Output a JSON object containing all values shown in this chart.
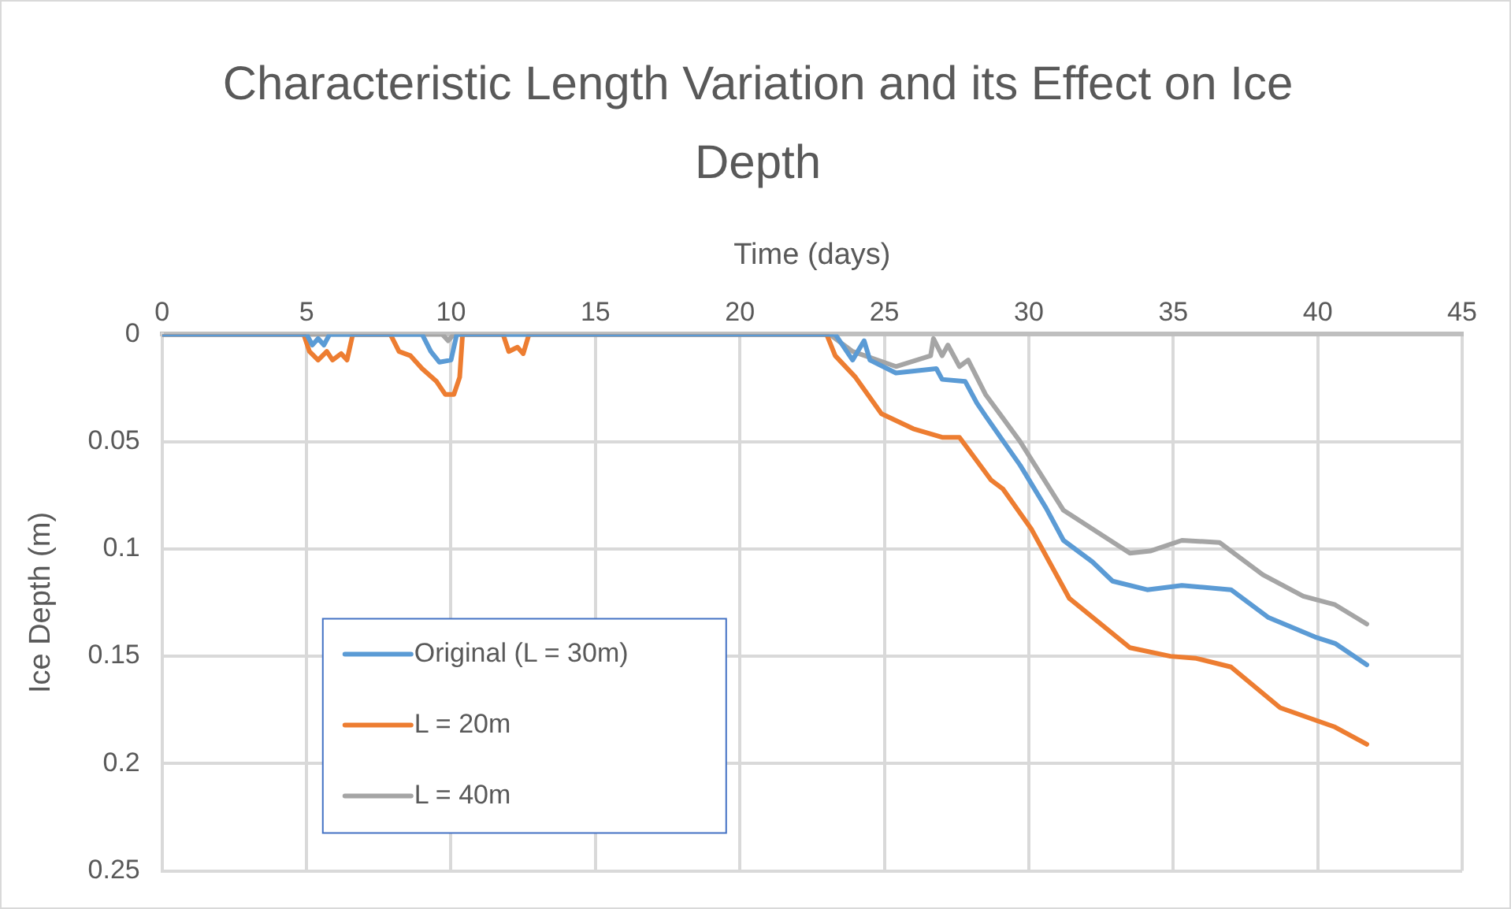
{
  "chart_data": {
    "type": "line",
    "title": "Characteristic Length Variation and its Effect on Ice Depth",
    "xlabel": "Time (days)",
    "ylabel": "Ice Depth (m)",
    "xlim": [
      0,
      45
    ],
    "xticks": [
      0,
      5,
      10,
      15,
      20,
      25,
      30,
      35,
      40,
      45
    ],
    "ylim": [
      0.25,
      0
    ],
    "yticks": [
      0,
      0.05,
      0.1,
      0.15,
      0.2,
      0.25
    ],
    "grid": true,
    "legend": "bottom left",
    "marker": "none",
    "line_style": "solid",
    "series": [
      {
        "name": "Original (L = 30m)",
        "color": "#5b9bd5",
        "x": [
          0,
          5.0,
          5.2,
          5.4,
          5.6,
          5.8,
          9.0,
          9.3,
          9.6,
          10.0,
          10.2,
          23.0,
          23.3,
          23.9,
          24.3,
          24.5,
          25.4,
          26.8,
          27.0,
          27.8,
          28.2,
          28.5,
          29.7,
          30.6,
          31.2,
          32.2,
          32.9,
          34.1,
          35.3,
          37.0,
          38.3,
          39.9,
          40.6,
          41.7
        ],
        "values": [
          0,
          0,
          0.005,
          0.002,
          0.005,
          0,
          0,
          0.008,
          0.013,
          0.012,
          0,
          0,
          0,
          0.012,
          0.003,
          0.012,
          0.018,
          0.016,
          0.021,
          0.022,
          0.032,
          0.038,
          0.061,
          0.081,
          0.096,
          0.106,
          0.115,
          0.119,
          0.117,
          0.119,
          0.132,
          0.141,
          0.144,
          0.154
        ]
      },
      {
        "name": "L = 20m",
        "color": "#ed7d31",
        "x": [
          0,
          4.9,
          5.1,
          5.4,
          5.7,
          5.9,
          6.2,
          6.4,
          6.6,
          7.9,
          8.2,
          8.6,
          9.0,
          9.5,
          9.8,
          10.1,
          10.3,
          10.4,
          11.8,
          12.0,
          12.3,
          12.5,
          12.7,
          23.0,
          23.3,
          24.0,
          24.9,
          26.0,
          27.0,
          27.6,
          28.7,
          29.1,
          30.1,
          31.4,
          33.5,
          34.9,
          35.8,
          37.0,
          38.7,
          40.6,
          41.7
        ],
        "values": [
          0,
          0,
          0.008,
          0.012,
          0.008,
          0.012,
          0.009,
          0.012,
          0,
          0,
          0.008,
          0.01,
          0.016,
          0.022,
          0.028,
          0.028,
          0.02,
          0,
          0,
          0.008,
          0.006,
          0.009,
          0,
          0,
          0.01,
          0.02,
          0.037,
          0.044,
          0.048,
          0.048,
          0.068,
          0.072,
          0.091,
          0.123,
          0.146,
          0.15,
          0.151,
          0.155,
          0.174,
          0.183,
          0.191
        ]
      },
      {
        "name": "L = 40m",
        "color": "#a5a5a5",
        "x": [
          0,
          9.7,
          9.9,
          10.1,
          23.1,
          23.9,
          25.4,
          26.6,
          26.7,
          27.0,
          27.2,
          27.6,
          27.9,
          28.5,
          29.7,
          31.2,
          33.5,
          34.2,
          35.3,
          36.6,
          38.1,
          39.5,
          40.6,
          41.7
        ],
        "values": [
          0,
          0,
          0.003,
          0,
          0,
          0.008,
          0.015,
          0.01,
          0.002,
          0.01,
          0.005,
          0.015,
          0.012,
          0.028,
          0.05,
          0.082,
          0.102,
          0.101,
          0.096,
          0.097,
          0.112,
          0.122,
          0.126,
          0.135
        ]
      }
    ]
  }
}
